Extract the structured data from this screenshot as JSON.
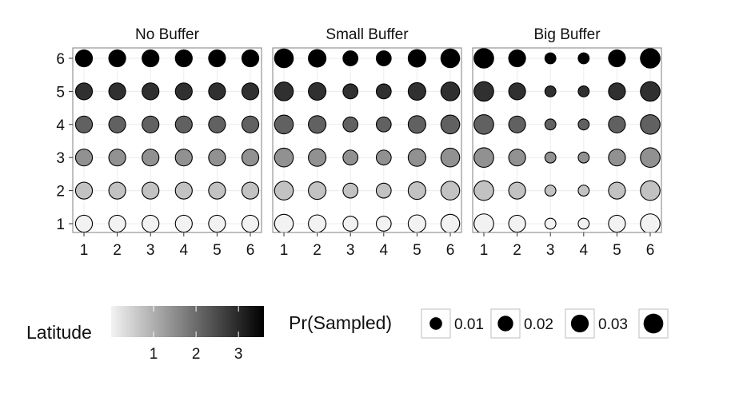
{
  "chart_data": {
    "type": "scatter",
    "x": [
      1,
      2,
      3,
      4,
      5,
      6
    ],
    "y": [
      1,
      2,
      3,
      4,
      5,
      6
    ],
    "xlim": [
      1,
      6
    ],
    "ylim": [
      1,
      6
    ],
    "x_ticks": [
      "1",
      "2",
      "3",
      "4",
      "5",
      "6"
    ],
    "y_ticks": [
      "1",
      "2",
      "3",
      "4",
      "5",
      "6"
    ],
    "xlabel": "",
    "ylabel": "",
    "grid": true,
    "panels": [
      {
        "title": "No Buffer",
        "size_by_x": [
          0.022,
          0.022,
          0.022,
          0.022,
          0.022,
          0.022
        ]
      },
      {
        "title": "Small Buffer",
        "size_by_x": [
          0.03,
          0.025,
          0.015,
          0.015,
          0.025,
          0.03
        ]
      },
      {
        "title": "Big Buffer",
        "size_by_x": [
          0.034,
          0.022,
          0.005,
          0.005,
          0.022,
          0.034
        ]
      }
    ],
    "point_note": "Fill encodes Latitude (y row); size encodes Pr(Sampled)",
    "legend": {
      "position": "bottom",
      "fill": {
        "title": "Latitude",
        "ticks": [
          "1",
          "2",
          "3"
        ],
        "range": [
          0,
          3.6
        ],
        "colors": [
          "#f2f2f2",
          "#000000"
        ]
      },
      "size": {
        "title": "Pr(Sampled)",
        "items": [
          {
            "label": "0.01",
            "value": 0.01
          },
          {
            "label": "0.02",
            "value": 0.02
          },
          {
            "label": "0.03",
            "value": 0.03
          },
          {
            "label": "",
            "value": 0.04
          }
        ]
      }
    }
  }
}
